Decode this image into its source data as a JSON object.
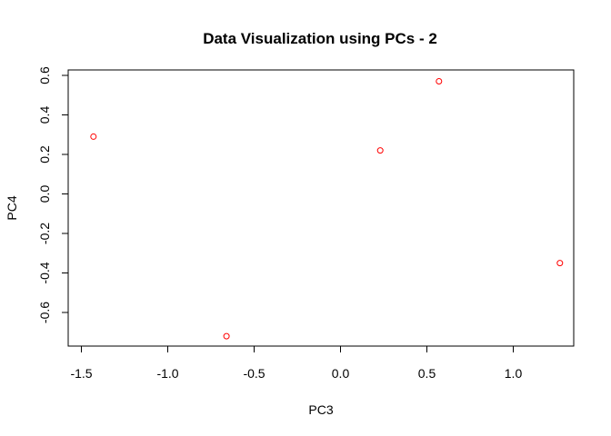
{
  "chart_data": {
    "type": "scatter",
    "title": "Data Visualization using PCs - 2",
    "xlabel": "PC3",
    "ylabel": "PC4",
    "xlim": [
      -1.5,
      1.3
    ],
    "ylim": [
      -0.75,
      0.6
    ],
    "x_ticks": [
      -1.5,
      -1.0,
      -0.5,
      0.0,
      0.5,
      1.0
    ],
    "x_tick_labels": [
      "-1.5",
      "-1.0",
      "-0.5",
      "0.0",
      "0.5",
      "1.0"
    ],
    "y_ticks": [
      -0.6,
      -0.4,
      -0.2,
      0.0,
      0.2,
      0.4,
      0.6
    ],
    "y_tick_labels": [
      "-0.6",
      "-0.4",
      "-0.2",
      "0.0",
      "0.2",
      "0.4",
      "0.6"
    ],
    "grid": false,
    "marker": "open-circle",
    "marker_color": "#ff0000",
    "points": [
      {
        "x": -1.43,
        "y": 0.29
      },
      {
        "x": -0.66,
        "y": -0.72
      },
      {
        "x": 0.23,
        "y": 0.22
      },
      {
        "x": 0.57,
        "y": 0.57
      },
      {
        "x": 1.27,
        "y": -0.35
      }
    ]
  }
}
